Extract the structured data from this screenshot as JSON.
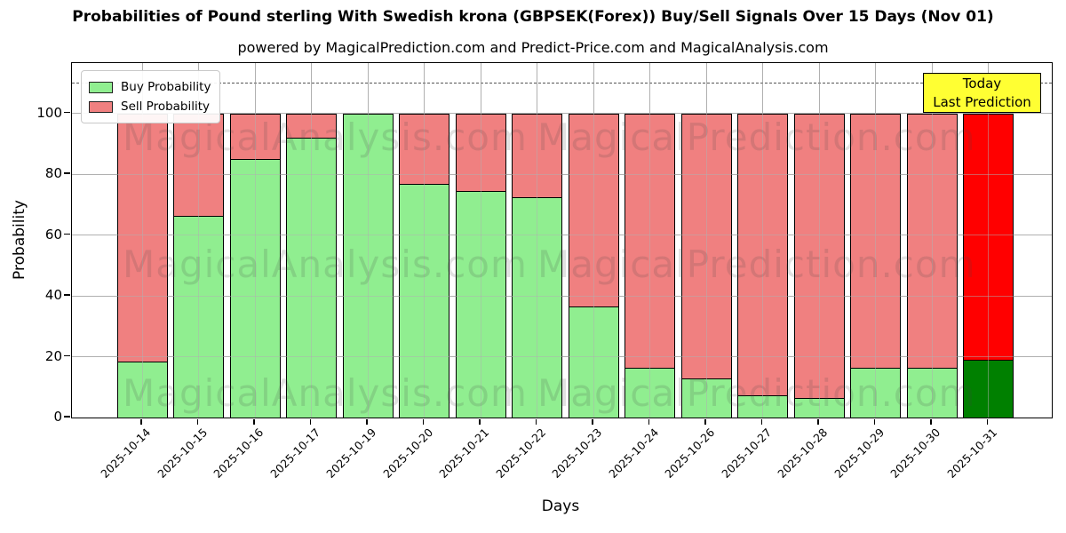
{
  "title": "Probabilities of Pound sterling With Swedish krona (GBPSEK(Forex)) Buy/Sell Signals Over 15 Days (Nov 01)",
  "subtitle": "powered by MagicalPrediction.com and Predict-Price.com and MagicalAnalysis.com",
  "legend": {
    "items": [
      {
        "label": "Buy Probability",
        "color": "#90ee90"
      },
      {
        "label": "Sell Probability",
        "color": "#f08080"
      }
    ]
  },
  "annotation": {
    "line1": "Today",
    "line2": "Last Prediction",
    "box_color": "#ffff33"
  },
  "chart_data": {
    "type": "bar",
    "stacked": true,
    "title": "Probabilities of Pound sterling With Swedish krona (GBPSEK(Forex)) Buy/Sell Signals Over 15 Days (Nov 01)",
    "xlabel": "Days",
    "ylabel": "Probability",
    "categories": [
      "2025-10-14",
      "2025-10-15",
      "2025-10-16",
      "2025-10-17",
      "2025-10-19",
      "2025-10-20",
      "2025-10-21",
      "2025-10-22",
      "2025-10-23",
      "2025-10-24",
      "2025-10-26",
      "2025-10-27",
      "2025-10-28",
      "2025-10-29",
      "2025-10-30",
      "2025-10-31"
    ],
    "series": [
      {
        "name": "Buy Probability",
        "color": "#90ee90",
        "values": [
          18.5,
          66.5,
          85,
          92,
          100,
          77,
          74.5,
          72.5,
          36.5,
          16.5,
          13,
          7.5,
          6.5,
          16.5,
          16.5,
          19
        ]
      },
      {
        "name": "Sell Probability",
        "color": "#f08080",
        "values": [
          81.5,
          33.5,
          15,
          8,
          0,
          23,
          25.5,
          27.5,
          63.5,
          83.5,
          87,
          92.5,
          93.5,
          83.5,
          83.5,
          81
        ]
      }
    ],
    "highlight_last_bar": {
      "buy_color": "#008000",
      "sell_color": "#ff0000",
      "note": "Today Last Prediction"
    },
    "ylim": [
      0,
      116.5
    ],
    "yticks": [
      0,
      20,
      40,
      60,
      80,
      100
    ],
    "dashed_line_y": 110,
    "grid": true,
    "legend_position": "upper left",
    "watermarks": [
      "MagicalAnalysis.com",
      "MagicalPrediction.com"
    ]
  }
}
